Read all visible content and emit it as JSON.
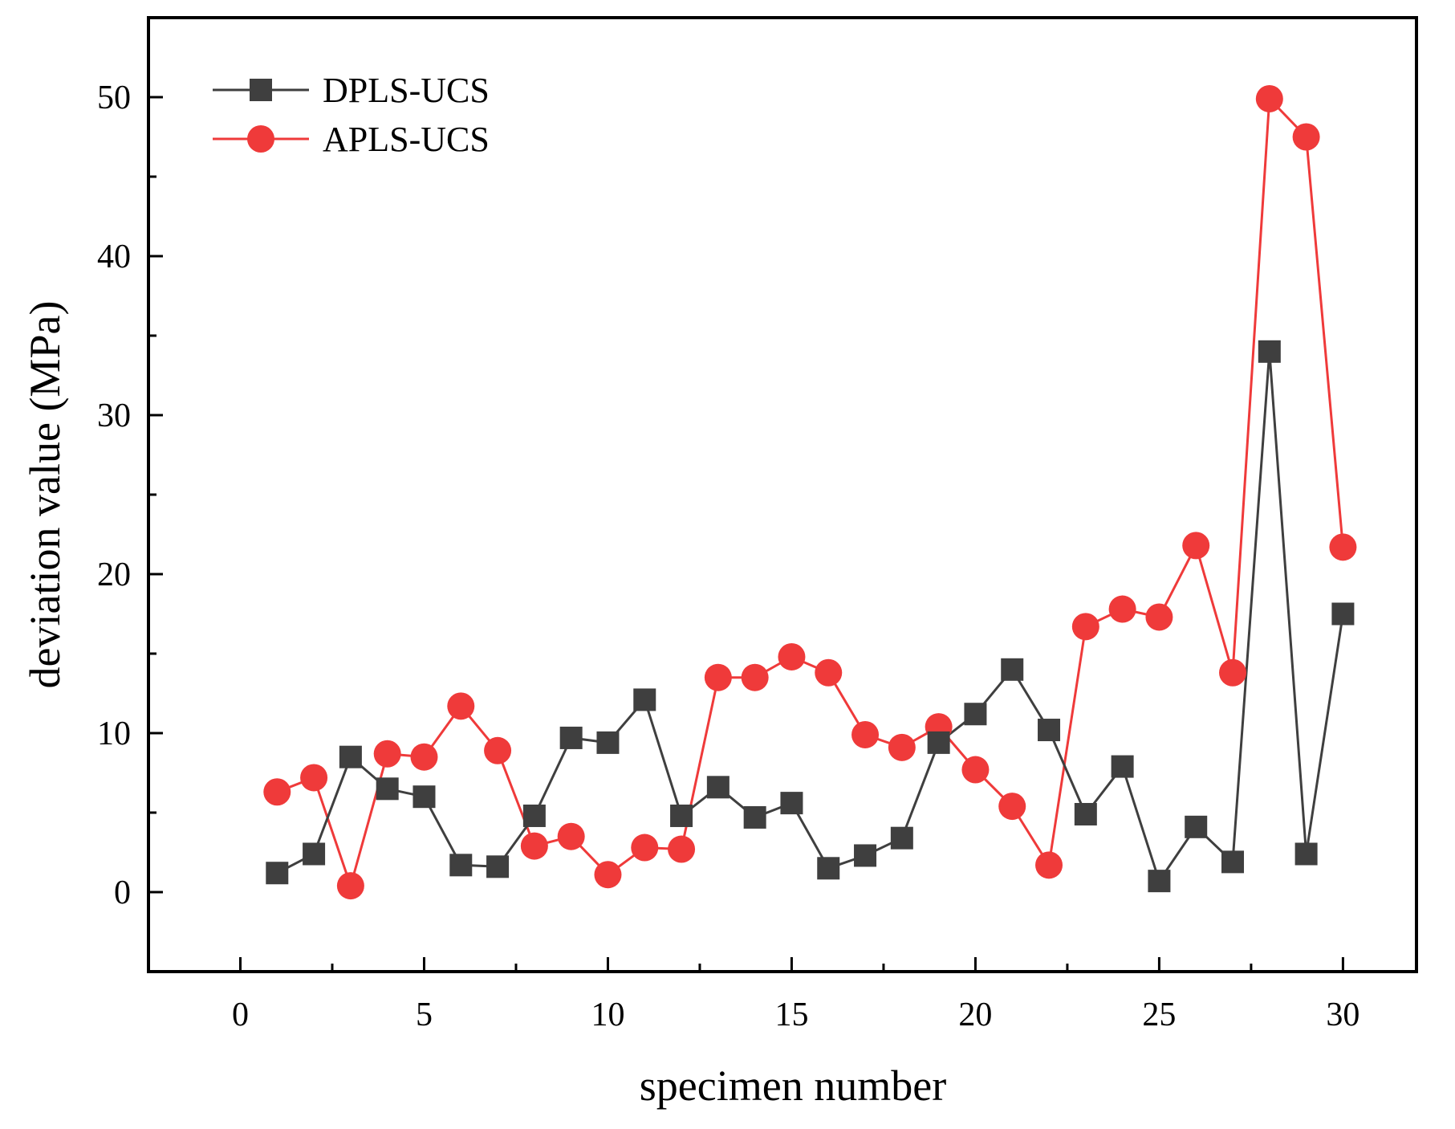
{
  "chart_data": {
    "type": "line",
    "title": "",
    "xlabel": "specimen number",
    "ylabel": "deviation value (MPa)",
    "xlim": [
      -2.5,
      32
    ],
    "ylim": [
      -5,
      55
    ],
    "x_ticks": [
      0,
      5,
      10,
      15,
      20,
      25,
      30
    ],
    "y_ticks": [
      0,
      10,
      20,
      30,
      40,
      50
    ],
    "x_minor_step": 2.5,
    "y_minor_step": 5,
    "grid": false,
    "legend_position": "top-left",
    "x": [
      1,
      2,
      3,
      4,
      5,
      6,
      7,
      8,
      9,
      10,
      11,
      12,
      13,
      14,
      15,
      16,
      17,
      18,
      19,
      20,
      21,
      22,
      23,
      24,
      25,
      26,
      27,
      28,
      29,
      30
    ],
    "series": [
      {
        "name": "DPLS-UCS",
        "marker": "square",
        "color": "#3f3f3f",
        "values": [
          1.2,
          2.4,
          8.5,
          6.5,
          6.0,
          1.7,
          1.6,
          4.8,
          9.7,
          9.4,
          12.1,
          4.8,
          6.6,
          4.7,
          5.6,
          1.5,
          2.3,
          3.4,
          9.4,
          11.2,
          14.0,
          10.2,
          4.9,
          7.9,
          0.7,
          4.1,
          1.9,
          34.0,
          2.4,
          17.5
        ]
      },
      {
        "name": "APLS-UCS",
        "marker": "circle",
        "color": "#ef3a3a",
        "values": [
          6.3,
          7.2,
          0.4,
          8.7,
          8.5,
          11.7,
          8.9,
          2.9,
          3.5,
          1.1,
          2.8,
          2.7,
          13.5,
          13.5,
          14.8,
          13.8,
          9.9,
          9.1,
          10.4,
          7.7,
          5.4,
          1.7,
          16.7,
          17.8,
          17.3,
          21.8,
          13.8,
          49.9,
          47.5,
          21.7
        ]
      }
    ]
  }
}
